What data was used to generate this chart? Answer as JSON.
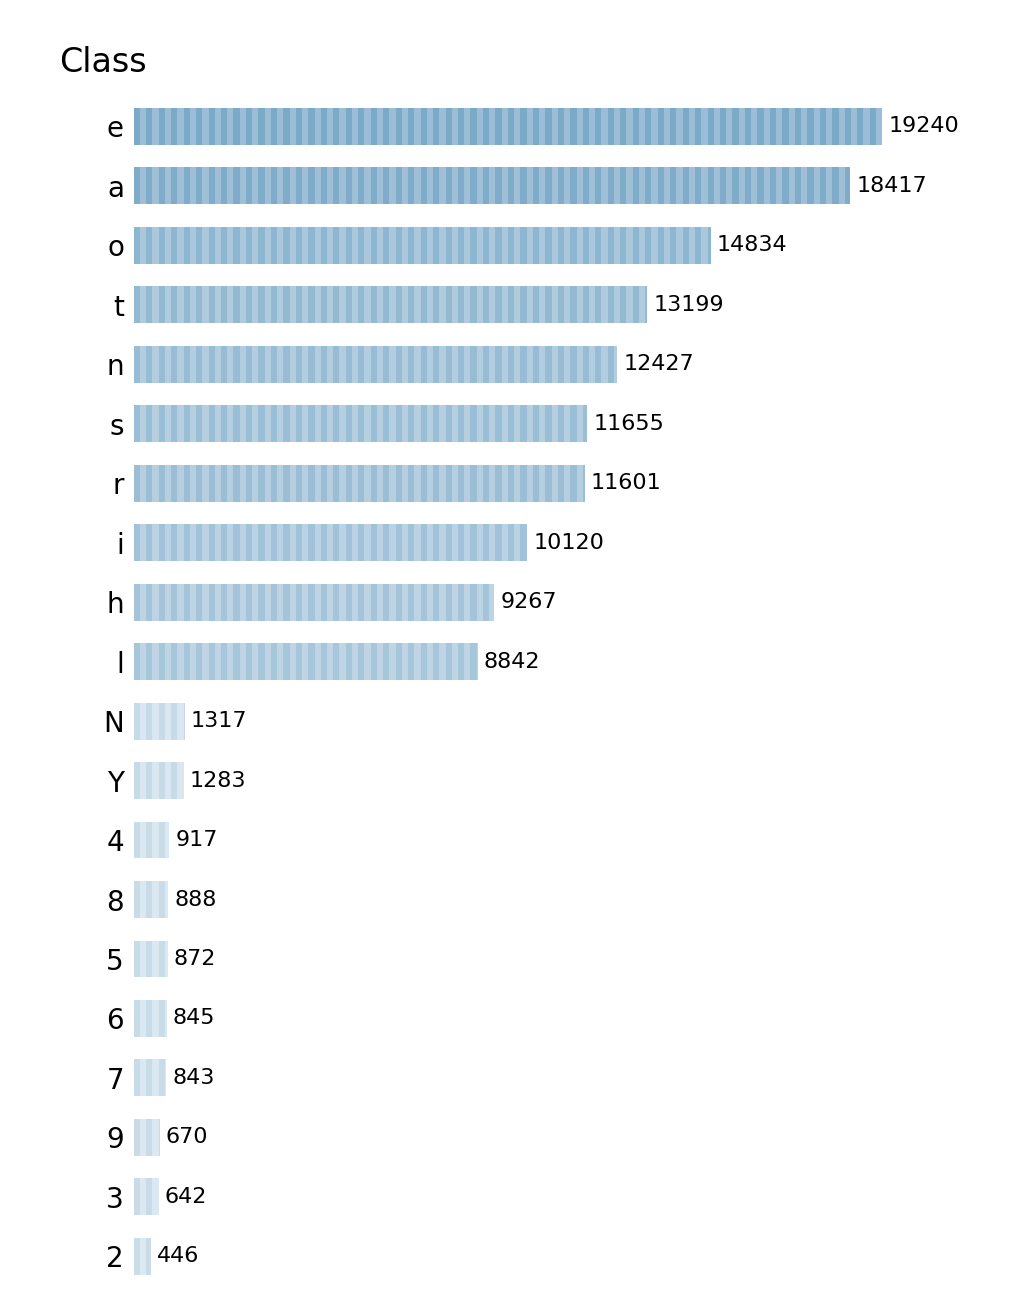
{
  "categories": [
    "e",
    "a",
    "o",
    "t",
    "n",
    "s",
    "r",
    "i",
    "h",
    "l",
    "N",
    "Y",
    "4",
    "8",
    "5",
    "6",
    "7",
    "9",
    "3",
    "2"
  ],
  "values": [
    19240,
    18417,
    14834,
    13199,
    12427,
    11655,
    11601,
    10120,
    9267,
    8842,
    1317,
    1283,
    917,
    888,
    872,
    845,
    843,
    670,
    642,
    446
  ],
  "title": "Class",
  "value_fontsize": 16,
  "label_fontsize": 20,
  "title_fontsize": 24,
  "background_color": "#ffffff",
  "bar_height": 0.62,
  "xlim": [
    0,
    22500
  ],
  "stripe_count": 60,
  "high_dark": "#7baac8",
  "high_light": "#aac8de",
  "low_dark": "#a8cce0",
  "low_light": "#cde2ef"
}
